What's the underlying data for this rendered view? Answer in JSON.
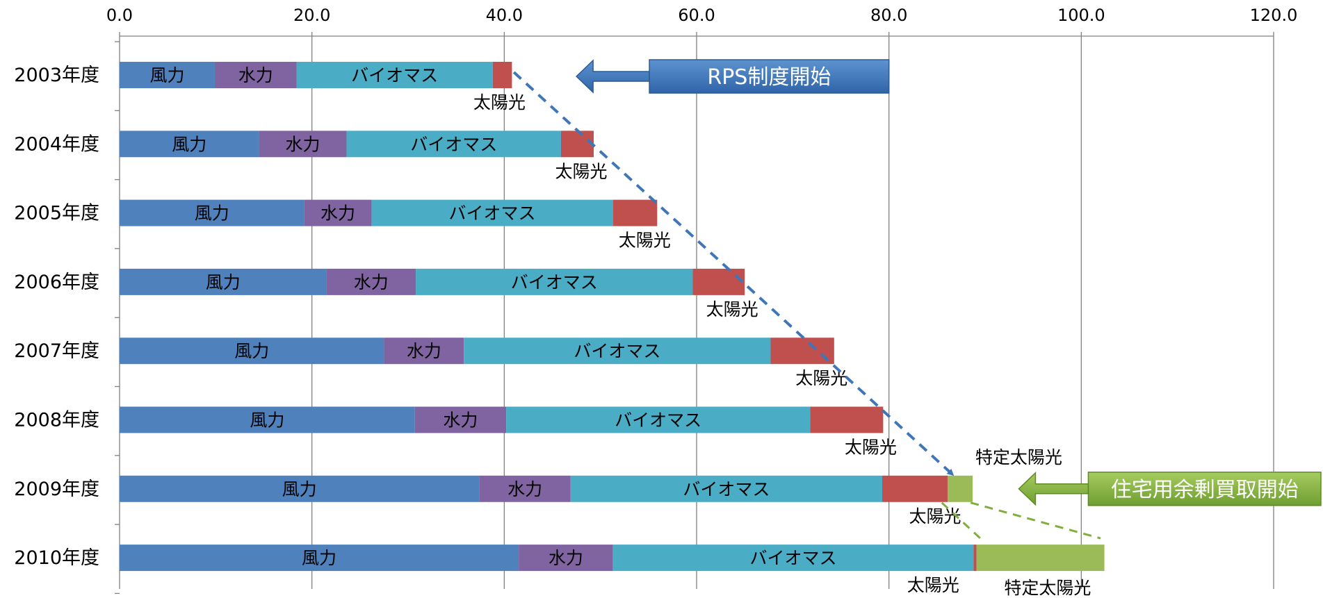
{
  "colors": {
    "wind": "#4F81BD",
    "hydro": "#8064A2",
    "biomass": "#4BACC6",
    "solar": "#C0504D",
    "special_solar": "#9BBB59",
    "grid": "#808080",
    "rps_arrow": "#3F76B8",
    "surplus_arrow": "#7FAE3E"
  },
  "chart_data": {
    "type": "bar",
    "orientation": "horizontal",
    "stacked": true,
    "xlim": [
      0,
      120
    ],
    "xticks": [
      "0.0",
      "20.0",
      "40.0",
      "60.0",
      "80.0",
      "100.0",
      "120.0"
    ],
    "xtick_values": [
      0,
      20,
      40,
      60,
      80,
      100,
      120
    ],
    "tick_position": "top",
    "grid": true,
    "categories": [
      "2003年度",
      "2004年度",
      "2005年度",
      "2006年度",
      "2007年度",
      "2008年度",
      "2009年度",
      "2010年度"
    ],
    "series": [
      {
        "name": "風力",
        "key": "wind",
        "values": [
          9.9,
          14.5,
          19.2,
          21.5,
          27.5,
          30.7,
          37.4,
          41.5
        ]
      },
      {
        "name": "水力",
        "key": "hydro",
        "values": [
          8.5,
          9.1,
          7.0,
          9.3,
          8.3,
          9.5,
          9.5,
          9.8
        ]
      },
      {
        "name": "バイオマス",
        "key": "biomass",
        "values": [
          20.4,
          22.3,
          25.1,
          28.8,
          31.9,
          31.6,
          32.4,
          37.5
        ]
      },
      {
        "name": "太陽光",
        "key": "solar",
        "values": [
          2.0,
          3.4,
          4.6,
          5.4,
          6.6,
          7.6,
          6.8,
          0.3
        ]
      },
      {
        "name": "特定太陽光",
        "key": "special_solar",
        "values": [
          0,
          0,
          0,
          0,
          0,
          0,
          2.6,
          13.3
        ]
      }
    ],
    "inbar_labels": [
      "風力",
      "水力",
      "バイオマス"
    ],
    "solar_label": "太陽光",
    "special_solar_label": "特定太陽光",
    "annotations": [
      {
        "text": "RPS制度開始",
        "key": "rps",
        "x_start": 47.5,
        "x_end": 80.0,
        "category": "2003年度"
      },
      {
        "text": "住宅用余剰買取開始",
        "key": "surplus",
        "x_start": 93.5,
        "x_end": 125.0,
        "category": "2009年度"
      }
    ],
    "trend_lines": [
      {
        "key": "rps_trend",
        "from": [
          41.0,
          "2003年度"
        ],
        "to": [
          86.5,
          "2009年度"
        ],
        "arrow": true
      },
      {
        "key": "surplus_trend_1",
        "from": [
          85.5,
          "2009年度"
        ],
        "to": [
          89.5,
          "2010年度"
        ]
      },
      {
        "key": "surplus_trend_2",
        "from": [
          88.5,
          "2009年度"
        ],
        "to": [
          102.0,
          "2010年度"
        ]
      }
    ]
  }
}
